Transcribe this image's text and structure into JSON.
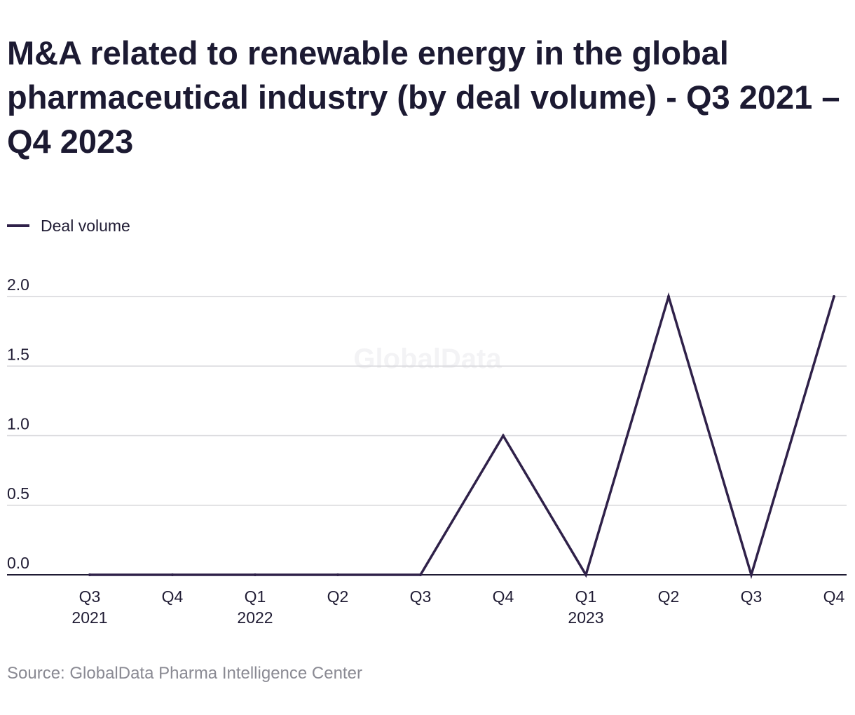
{
  "chart_data": {
    "type": "line",
    "title": "M&A related to renewable energy in the global pharmaceutical industry (by deal volume) - Q3 2021 – Q4 2023",
    "categories": [
      "Q3 2021",
      "Q4 2021",
      "Q1 2022",
      "Q2 2022",
      "Q3 2022",
      "Q4 2022",
      "Q1 2023",
      "Q2 2023",
      "Q3 2023",
      "Q4 2023"
    ],
    "x_tick_labels": [
      {
        "quarter": "Q3",
        "year": "2021"
      },
      {
        "quarter": "Q4",
        "year": ""
      },
      {
        "quarter": "Q1",
        "year": "2022"
      },
      {
        "quarter": "Q2",
        "year": ""
      },
      {
        "quarter": "Q3",
        "year": ""
      },
      {
        "quarter": "Q4",
        "year": ""
      },
      {
        "quarter": "Q1",
        "year": "2023"
      },
      {
        "quarter": "Q2",
        "year": ""
      },
      {
        "quarter": "Q3",
        "year": ""
      },
      {
        "quarter": "Q4",
        "year": ""
      }
    ],
    "series": [
      {
        "name": "Deal volume",
        "values": [
          0,
          0,
          0,
          0,
          0,
          1,
          0,
          2,
          0,
          2
        ],
        "color": "#2f2149"
      }
    ],
    "y_ticks": [
      "0.0",
      "0.5",
      "1.0",
      "1.5",
      "2.0"
    ],
    "ylim": [
      0,
      2
    ],
    "xlabel": "",
    "ylabel": "",
    "grid": true,
    "legend_position": "top-left",
    "watermark": "GlobalData",
    "source": "Source: GlobalData Pharma Intelligence Center"
  }
}
